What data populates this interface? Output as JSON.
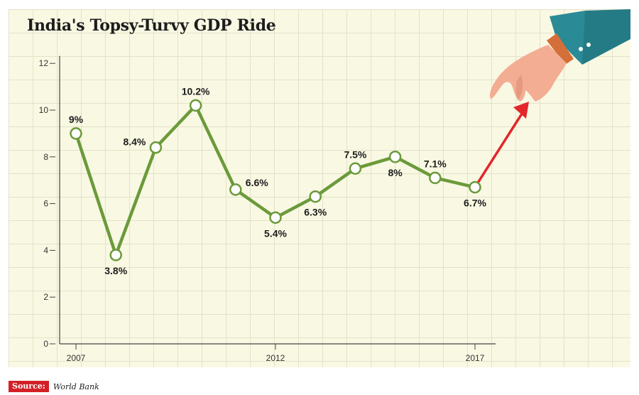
{
  "chart_data": {
    "type": "line",
    "title": "India's Topsy-Turvy GDP Ride",
    "xlabel": "",
    "ylabel": "",
    "x": [
      2007,
      2008,
      2009,
      2010,
      2011,
      2012,
      2013,
      2014,
      2015,
      2016,
      2017
    ],
    "values": [
      9,
      3.8,
      8.4,
      10.2,
      6.6,
      5.4,
      6.3,
      7.5,
      8,
      7.1,
      6.7
    ],
    "labels": [
      "9%",
      "3.8%",
      "8.4%",
      "10.2%",
      "6.6%",
      "5.4%",
      "6.3%",
      "7.5%",
      "8%",
      "7.1%",
      "6.7%"
    ],
    "xticks": [
      2007,
      2012,
      2017
    ],
    "yticks": [
      0,
      2,
      4,
      6,
      8,
      10,
      12
    ],
    "ylim": [
      0,
      12.5
    ],
    "xlim": [
      2007,
      2017
    ],
    "grid": true,
    "line_color": "#6b9a3a",
    "arrow_color": "#e3262b",
    "annotation": "red arrow pointing upward from 2017, held by a hand"
  },
  "source": {
    "tag": "Source:",
    "text": "World Bank"
  },
  "colors": {
    "background": "#f9f8e3",
    "grid": "#e3e2c8",
    "sleeve": "#2a8a96",
    "hand": "#f3ad93"
  }
}
